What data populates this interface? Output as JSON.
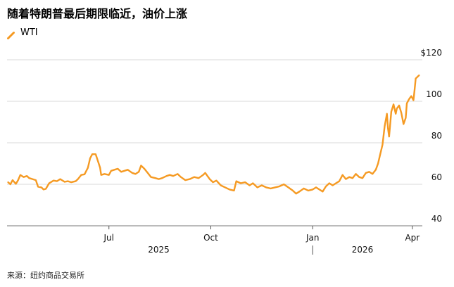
{
  "chart_data": {
    "type": "line",
    "title": "随着特朗普最后期限临近，油价上涨",
    "series": [
      {
        "name": "WTI",
        "color": "#f59a23",
        "points": [
          [
            "2025-04-01",
            61.0
          ],
          [
            "2025-04-03",
            60.0
          ],
          [
            "2025-04-05",
            62.0
          ],
          [
            "2025-04-08",
            60.2
          ],
          [
            "2025-04-10",
            62.0
          ],
          [
            "2025-04-12",
            64.5
          ],
          [
            "2025-04-15",
            63.5
          ],
          [
            "2025-04-18",
            64.0
          ],
          [
            "2025-04-20",
            63.0
          ],
          [
            "2025-04-23",
            62.5
          ],
          [
            "2025-04-26",
            62.0
          ],
          [
            "2025-04-28",
            58.8
          ],
          [
            "2025-05-01",
            58.5
          ],
          [
            "2025-05-03",
            57.5
          ],
          [
            "2025-05-05",
            57.8
          ],
          [
            "2025-05-08",
            60.5
          ],
          [
            "2025-05-12",
            61.8
          ],
          [
            "2025-05-15",
            61.5
          ],
          [
            "2025-05-18",
            62.5
          ],
          [
            "2025-05-22",
            61.2
          ],
          [
            "2025-05-25",
            61.5
          ],
          [
            "2025-05-28",
            61.0
          ],
          [
            "2025-06-01",
            61.5
          ],
          [
            "2025-06-03",
            62.5
          ],
          [
            "2025-06-06",
            64.5
          ],
          [
            "2025-06-09",
            64.8
          ],
          [
            "2025-06-12",
            68.0
          ],
          [
            "2025-06-14",
            72.5
          ],
          [
            "2025-06-16",
            74.5
          ],
          [
            "2025-06-19",
            74.5
          ],
          [
            "2025-06-20",
            73.0
          ],
          [
            "2025-06-23",
            68.0
          ],
          [
            "2025-06-24",
            64.5
          ],
          [
            "2025-06-27",
            65.0
          ],
          [
            "2025-07-01",
            64.5
          ],
          [
            "2025-07-03",
            66.5
          ],
          [
            "2025-07-06",
            67.0
          ],
          [
            "2025-07-09",
            67.5
          ],
          [
            "2025-07-12",
            66.0
          ],
          [
            "2025-07-15",
            66.5
          ],
          [
            "2025-07-18",
            67.0
          ],
          [
            "2025-07-22",
            65.5
          ],
          [
            "2025-07-25",
            65.0
          ],
          [
            "2025-07-28",
            66.0
          ],
          [
            "2025-07-30",
            69.0
          ],
          [
            "2025-08-02",
            67.5
          ],
          [
            "2025-08-05",
            65.5
          ],
          [
            "2025-08-08",
            63.5
          ],
          [
            "2025-08-12",
            63.0
          ],
          [
            "2025-08-15",
            62.5
          ],
          [
            "2025-08-18",
            63.0
          ],
          [
            "2025-08-22",
            64.0
          ],
          [
            "2025-08-25",
            64.5
          ],
          [
            "2025-08-28",
            64.0
          ],
          [
            "2025-09-01",
            65.0
          ],
          [
            "2025-09-04",
            63.5
          ],
          [
            "2025-09-08",
            62.0
          ],
          [
            "2025-09-12",
            62.5
          ],
          [
            "2025-09-16",
            63.5
          ],
          [
            "2025-09-20",
            63.0
          ],
          [
            "2025-09-24",
            64.5
          ],
          [
            "2025-09-26",
            65.5
          ],
          [
            "2025-09-30",
            62.5
          ],
          [
            "2025-10-03",
            61.0
          ],
          [
            "2025-10-06",
            61.8
          ],
          [
            "2025-10-10",
            59.5
          ],
          [
            "2025-10-14",
            58.5
          ],
          [
            "2025-10-18",
            57.5
          ],
          [
            "2025-10-22",
            57.0
          ],
          [
            "2025-10-24",
            61.5
          ],
          [
            "2025-10-28",
            60.5
          ],
          [
            "2025-11-01",
            61.0
          ],
          [
            "2025-11-05",
            59.5
          ],
          [
            "2025-11-08",
            60.5
          ],
          [
            "2025-11-12",
            58.5
          ],
          [
            "2025-11-16",
            59.5
          ],
          [
            "2025-11-20",
            58.5
          ],
          [
            "2025-11-24",
            58.0
          ],
          [
            "2025-11-28",
            58.5
          ],
          [
            "2025-12-02",
            59.0
          ],
          [
            "2025-12-06",
            60.0
          ],
          [
            "2025-12-10",
            58.5
          ],
          [
            "2025-12-14",
            57.0
          ],
          [
            "2025-12-17",
            55.5
          ],
          [
            "2025-12-20",
            56.5
          ],
          [
            "2025-12-24",
            58.0
          ],
          [
            "2025-12-28",
            57.0
          ],
          [
            "2026-01-01",
            57.5
          ],
          [
            "2026-01-04",
            58.5
          ],
          [
            "2026-01-07",
            57.5
          ],
          [
            "2026-01-10",
            56.5
          ],
          [
            "2026-01-13",
            59.0
          ],
          [
            "2026-01-16",
            60.5
          ],
          [
            "2026-01-19",
            59.5
          ],
          [
            "2026-01-22",
            60.5
          ],
          [
            "2026-01-25",
            61.5
          ],
          [
            "2026-01-28",
            64.5
          ],
          [
            "2026-01-31",
            62.5
          ],
          [
            "2026-02-03",
            63.5
          ],
          [
            "2026-02-06",
            63.0
          ],
          [
            "2026-02-09",
            65.0
          ],
          [
            "2026-02-12",
            63.5
          ],
          [
            "2026-02-15",
            63.0
          ],
          [
            "2026-02-18",
            65.5
          ],
          [
            "2026-02-21",
            66.0
          ],
          [
            "2026-02-24",
            65.0
          ],
          [
            "2026-02-27",
            67.0
          ],
          [
            "2026-03-01",
            70.0
          ],
          [
            "2026-03-03",
            74.5
          ],
          [
            "2026-03-05",
            79.0
          ],
          [
            "2026-03-07",
            88.0
          ],
          [
            "2026-03-09",
            94.0
          ],
          [
            "2026-03-10",
            87.0
          ],
          [
            "2026-03-11",
            83.0
          ],
          [
            "2026-03-13",
            95.0
          ],
          [
            "2026-03-15",
            98.5
          ],
          [
            "2026-03-17",
            94.0
          ],
          [
            "2026-03-18",
            96.5
          ],
          [
            "2026-03-20",
            98.0
          ],
          [
            "2026-03-22",
            94.5
          ],
          [
            "2026-03-24",
            89.0
          ],
          [
            "2026-03-26",
            92.0
          ],
          [
            "2026-03-27",
            99.0
          ],
          [
            "2026-03-29",
            101.0
          ],
          [
            "2026-03-31",
            102.5
          ],
          [
            "2026-04-02",
            100.5
          ],
          [
            "2026-04-03",
            105.5
          ],
          [
            "2026-04-04",
            111.0
          ],
          [
            "2026-04-07",
            112.5
          ]
        ]
      }
    ],
    "xlabel": "",
    "ylabel": "",
    "x_range": [
      "2025-03-31",
      "2026-04-10"
    ],
    "ylim": [
      40,
      120
    ],
    "y_ticks": [
      40,
      60,
      80,
      100,
      120
    ],
    "y_tick_labels": [
      "40",
      "60",
      "80",
      "100",
      "$120"
    ],
    "x_ticks": [
      {
        "date": "2025-07-01",
        "label": "Jul"
      },
      {
        "date": "2025-10-01",
        "label": "Oct"
      },
      {
        "date": "2026-01-01",
        "label": "Jan"
      },
      {
        "date": "2026-04-01",
        "label": "Apr"
      }
    ],
    "year_labels": [
      {
        "date": "2025-08-15",
        "label": "2025"
      },
      {
        "date": "2026-02-15",
        "label": "2026"
      }
    ],
    "year_divider": "2026-01-01",
    "grid": true,
    "legend_position": "top-left"
  },
  "source": "来源：纽约商品交易所"
}
